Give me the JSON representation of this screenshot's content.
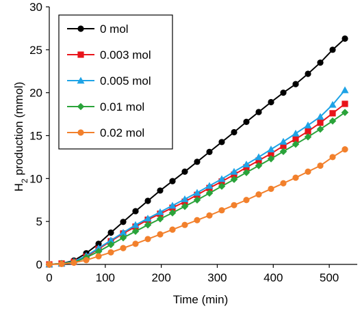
{
  "chart_data": {
    "type": "line",
    "xlabel": "Time (min)",
    "ylabel_main": "H",
    "ylabel_sub": "2",
    "ylabel_rest": " production (mmol)",
    "xlim": [
      0,
      550
    ],
    "ylim": [
      0,
      30
    ],
    "xticks": [
      "0",
      "100",
      "200",
      "300",
      "400",
      "500"
    ],
    "yticks": [
      "0",
      "5",
      "10",
      "15",
      "20",
      "25",
      "30"
    ],
    "grid": false,
    "legend_position": "top-left",
    "x": [
      0,
      22,
      44,
      66,
      88,
      110,
      132,
      154,
      176,
      198,
      220,
      242,
      264,
      286,
      308,
      330,
      352,
      374,
      396,
      418,
      440,
      462,
      484,
      506,
      528
    ],
    "series": [
      {
        "name": "0 mol",
        "color": "#000000",
        "marker": "circle",
        "values": [
          0,
          0.1,
          0.45,
          1.3,
          2.4,
          3.7,
          4.95,
          6.2,
          7.4,
          8.6,
          9.7,
          10.8,
          11.95,
          13.1,
          14.25,
          15.4,
          16.6,
          17.75,
          18.9,
          20.0,
          21.0,
          22.2,
          23.5,
          25.0,
          26.3
        ]
      },
      {
        "name": "0.003 mol",
        "color": "#e8141a",
        "marker": "square",
        "values": [
          0,
          0.1,
          0.3,
          0.9,
          1.8,
          2.7,
          3.6,
          4.4,
          5.2,
          5.9,
          6.6,
          7.3,
          8.1,
          8.9,
          9.65,
          10.45,
          11.3,
          12.1,
          12.9,
          13.8,
          14.6,
          15.5,
          16.5,
          17.6,
          18.7
        ]
      },
      {
        "name": "0.005 mol",
        "color": "#1ea3e6",
        "marker": "triangle",
        "values": [
          0,
          0.1,
          0.35,
          1.0,
          1.9,
          2.8,
          3.7,
          4.6,
          5.35,
          6.1,
          6.85,
          7.6,
          8.35,
          9.15,
          9.95,
          10.8,
          11.65,
          12.5,
          13.4,
          14.3,
          15.25,
          16.2,
          17.2,
          18.6,
          20.3
        ]
      },
      {
        "name": "0.01 mol",
        "color": "#2aa33a",
        "marker": "diamond",
        "values": [
          0,
          0.1,
          0.25,
          0.8,
          1.5,
          2.3,
          3.1,
          3.85,
          4.6,
          5.3,
          6.0,
          6.75,
          7.5,
          8.3,
          9.1,
          9.9,
          10.7,
          11.5,
          12.3,
          13.15,
          14.0,
          14.85,
          15.75,
          16.7,
          17.7
        ]
      },
      {
        "name": "0.02 mol",
        "color": "#f2802c",
        "marker": "circle",
        "values": [
          0,
          0.05,
          0.2,
          0.5,
          0.95,
          1.4,
          1.9,
          2.4,
          2.95,
          3.5,
          4.05,
          4.6,
          5.15,
          5.7,
          6.3,
          6.9,
          7.5,
          8.15,
          8.8,
          9.45,
          10.1,
          10.8,
          11.5,
          12.5,
          13.4
        ]
      }
    ]
  }
}
